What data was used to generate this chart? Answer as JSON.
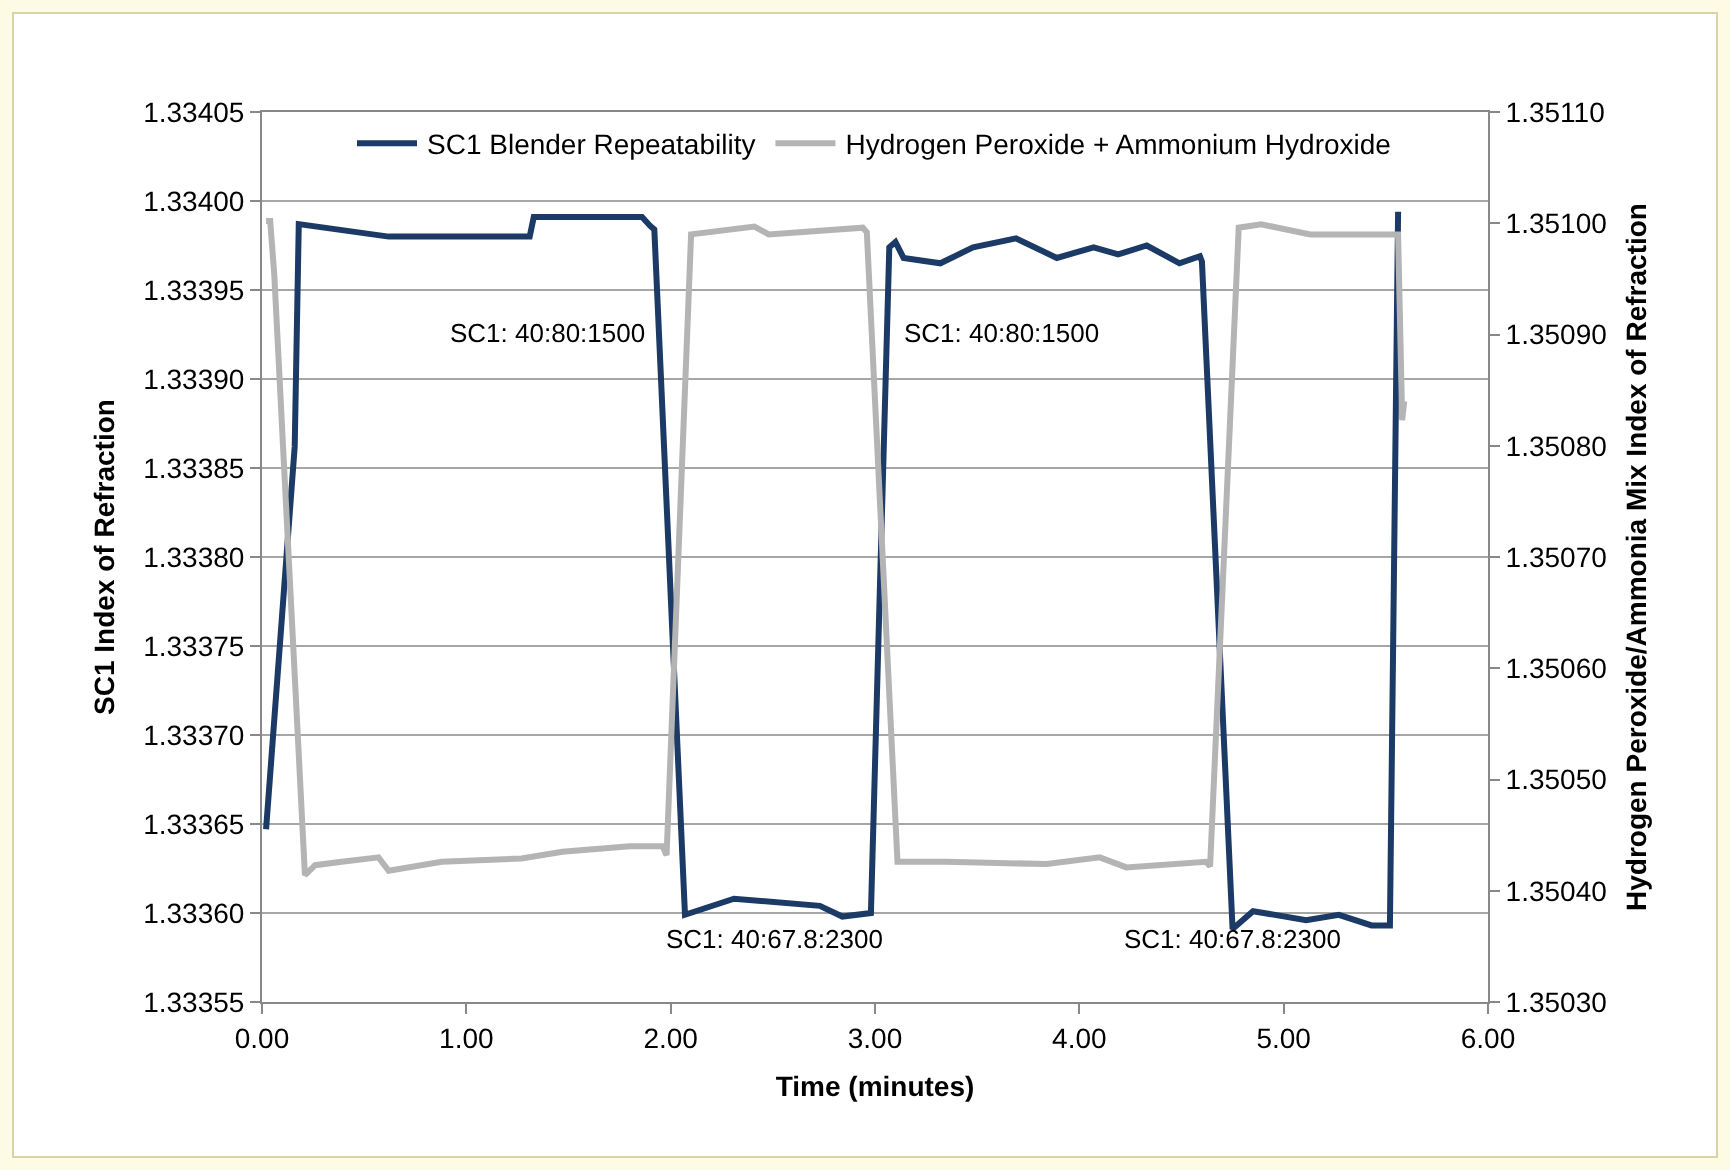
{
  "chart_data": {
    "type": "line",
    "xlabel": "Time (minutes)",
    "ylabel": "SC1 Index of Refraction",
    "y2label": "Hydrogen Peroxide/Ammonia Mix Index of Refraction",
    "xlim": [
      0,
      6
    ],
    "xticks": [
      {
        "value": 0,
        "label": "0.00"
      },
      {
        "value": 1,
        "label": "1.00"
      },
      {
        "value": 2,
        "label": "2.00"
      },
      {
        "value": 3,
        "label": "3.00"
      },
      {
        "value": 4,
        "label": "4.00"
      },
      {
        "value": 5,
        "label": "5.00"
      },
      {
        "value": 6,
        "label": "6.00"
      }
    ],
    "ylim": [
      1.33355,
      1.33405
    ],
    "yticks": [
      {
        "value": 1.33355,
        "label": "1.33355"
      },
      {
        "value": 1.3336,
        "label": "1.33360"
      },
      {
        "value": 1.33365,
        "label": "1.33365"
      },
      {
        "value": 1.3337,
        "label": "1.33370"
      },
      {
        "value": 1.33375,
        "label": "1.33375"
      },
      {
        "value": 1.3338,
        "label": "1.33380"
      },
      {
        "value": 1.33385,
        "label": "1.33385"
      },
      {
        "value": 1.3339,
        "label": "1.33390"
      },
      {
        "value": 1.33395,
        "label": "1.33395"
      },
      {
        "value": 1.334,
        "label": "1.33400"
      },
      {
        "value": 1.33405,
        "label": "1.33405"
      }
    ],
    "y2lim": [
      1.3503,
      1.3511
    ],
    "y2ticks": [
      {
        "value": 1.3503,
        "label": "1.35030"
      },
      {
        "value": 1.3504,
        "label": "1.35040"
      },
      {
        "value": 1.3505,
        "label": "1.35050"
      },
      {
        "value": 1.3506,
        "label": "1.35060"
      },
      {
        "value": 1.3507,
        "label": "1.35070"
      },
      {
        "value": 1.3508,
        "label": "1.35080"
      },
      {
        "value": 1.3509,
        "label": "1.35090"
      },
      {
        "value": 1.351,
        "label": "1.35100"
      },
      {
        "value": 1.3511,
        "label": "1.35110"
      }
    ],
    "grid": "y",
    "legend": "top",
    "marker": "none",
    "line_style": "solid",
    "series": [
      {
        "name": "SC1 Blender Repeatability",
        "color": "#1b3a66",
        "x": [
          0.02,
          0.16,
          0.18,
          0.62,
          1.31,
          1.33,
          1.67,
          1.86,
          1.9,
          1.92,
          2.07,
          2.31,
          2.73,
          2.84,
          2.98,
          3.07,
          3.1,
          3.14,
          3.32,
          3.48,
          3.69,
          3.89,
          4.07,
          4.19,
          4.33,
          4.49,
          4.59,
          4.6,
          4.75,
          4.85,
          5.11,
          5.27,
          5.43,
          5.52,
          5.56
        ],
        "values": [
          1.333647,
          1.333862,
          1.333987,
          1.33398,
          1.33398,
          1.333991,
          1.333991,
          1.333991,
          1.333986,
          1.333984,
          1.333599,
          1.333608,
          1.333604,
          1.333598,
          1.3336,
          1.333974,
          1.333977,
          1.333968,
          1.333965,
          1.333974,
          1.333979,
          1.333968,
          1.333974,
          1.33397,
          1.333975,
          1.333965,
          1.333969,
          1.333966,
          1.333591,
          1.333601,
          1.333596,
          1.333599,
          1.333593,
          1.333593,
          1.333994
        ]
      },
      {
        "name": "Hydrogen Peroxide + Ammonium Hydroxide",
        "color": "#b4b4b4",
        "axis": "y2",
        "x": [
          0.02,
          0.04,
          0.06,
          0.21,
          0.26,
          0.39,
          0.57,
          0.62,
          0.88,
          1.27,
          1.47,
          1.8,
          1.96,
          1.98,
          2.1,
          2.41,
          2.48,
          2.94,
          2.96,
          3.11,
          3.35,
          3.84,
          4.1,
          4.23,
          4.62,
          4.64,
          4.78,
          4.89,
          5.13,
          5.56,
          5.58,
          5.59
        ],
        "values": [
          1.351002,
          1.351002,
          1.350954,
          1.350414,
          1.350423,
          1.350426,
          1.35043,
          1.350418,
          1.350426,
          1.350429,
          1.350435,
          1.35044,
          1.35044,
          1.350432,
          1.35099,
          1.350997,
          1.35099,
          1.350996,
          1.350992,
          1.350426,
          1.350426,
          1.350424,
          1.35043,
          1.350421,
          1.350426,
          1.350422,
          1.350996,
          1.350999,
          1.35099,
          1.35099,
          1.350823,
          1.35084
        ]
      }
    ],
    "annotations": [
      "SC1: 40:80:1500",
      "SC1: 40:67.8:2300",
      "SC1: 40:80:1500",
      "SC1: 40:67.8:2300"
    ]
  }
}
